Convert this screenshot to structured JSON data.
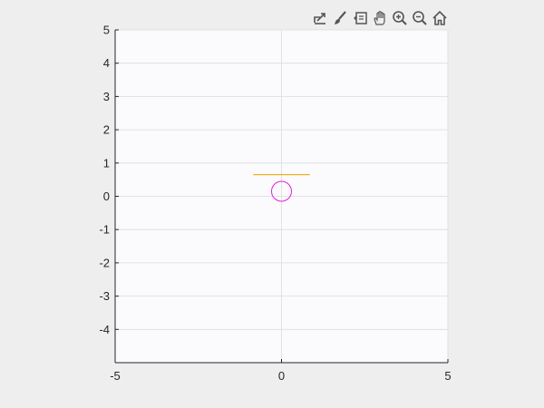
{
  "toolbar": {
    "buttons": [
      {
        "name": "export-icon"
      },
      {
        "name": "brush-icon"
      },
      {
        "name": "data-tips-icon"
      },
      {
        "name": "pan-icon"
      },
      {
        "name": "zoom-in-icon"
      },
      {
        "name": "zoom-out-icon"
      },
      {
        "name": "home-icon"
      }
    ]
  },
  "colors": {
    "figure_background": "#efeeef",
    "axes_background": "#fbfafc",
    "grid": "#dcdcdc",
    "axis": "#262626",
    "circle": "#e020e0",
    "line": "#edb120"
  },
  "chart_data": {
    "type": "line",
    "xlim": [
      -5,
      5
    ],
    "ylim": [
      -5,
      5
    ],
    "xticks": [
      -5,
      0,
      5
    ],
    "yticks": [
      -4,
      -3,
      -2,
      -1,
      0,
      1,
      2,
      3,
      4,
      5
    ],
    "grid": true,
    "series": [
      {
        "shape": "line",
        "color": "#edb120",
        "x": [
          -0.85,
          0.85
        ],
        "y": [
          0.65,
          0.65
        ]
      },
      {
        "shape": "circle",
        "color": "#e020e0",
        "center": [
          0,
          0.15
        ],
        "radius": 0.3
      }
    ]
  }
}
